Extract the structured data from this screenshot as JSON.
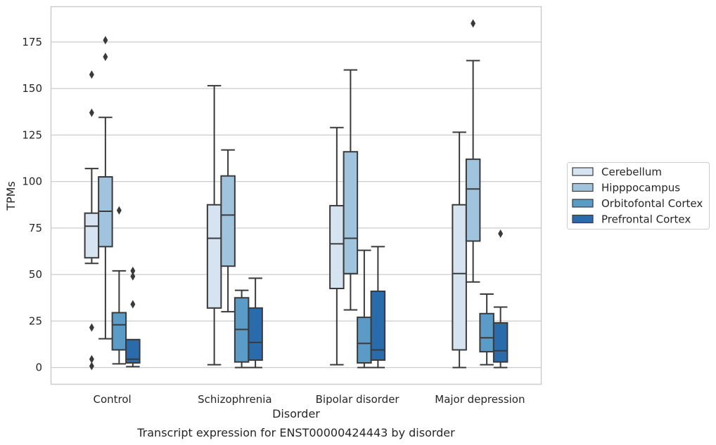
{
  "chart_data": {
    "type": "box",
    "title": "",
    "caption": "Transcript expression for ENST00000424443 by disorder",
    "xlabel": "Disorder",
    "ylabel": "TPMs",
    "ylim": [
      -9,
      194
    ],
    "yticks": [
      0,
      25,
      50,
      75,
      100,
      125,
      150,
      175
    ],
    "grid": "horizontal",
    "legend_position": "right",
    "categories": [
      "Control",
      "Schizophrenia",
      "Bipolar disorder",
      "Major depression"
    ],
    "series": [
      {
        "name": "Cerebellum",
        "color": "#d6e4f1",
        "boxes": [
          {
            "whisker_low": 56,
            "q1": 59,
            "median": 76,
            "q3": 83,
            "whisker_high": 107,
            "outliers": [
              157.5,
              137,
              21.5,
              4.5,
              0.8
            ]
          },
          {
            "whisker_low": 1.5,
            "q1": 32,
            "median": 69.5,
            "q3": 87.5,
            "whisker_high": 151.5,
            "outliers": []
          },
          {
            "whisker_low": 1.5,
            "q1": 42.5,
            "median": 66.5,
            "q3": 87,
            "whisker_high": 129,
            "outliers": []
          },
          {
            "whisker_low": 0,
            "q1": 9.5,
            "median": 50.5,
            "q3": 87.5,
            "whisker_high": 126.5,
            "outliers": []
          }
        ]
      },
      {
        "name": "Hipppocampus",
        "color": "#a0c4dd",
        "boxes": [
          {
            "whisker_low": 15.5,
            "q1": 65,
            "median": 84,
            "q3": 102.5,
            "whisker_high": 134.5,
            "outliers": [
              176,
              167
            ]
          },
          {
            "whisker_low": 30,
            "q1": 54.5,
            "median": 82,
            "q3": 103,
            "whisker_high": 117,
            "outliers": []
          },
          {
            "whisker_low": 31,
            "q1": 50.5,
            "median": 69.5,
            "q3": 116,
            "whisker_high": 160,
            "outliers": []
          },
          {
            "whisker_low": 46,
            "q1": 68,
            "median": 96,
            "q3": 112,
            "whisker_high": 165,
            "outliers": [
              185
            ]
          }
        ]
      },
      {
        "name": "Orbitofontal Cortex",
        "color": "#5b9bc8",
        "boxes": [
          {
            "whisker_low": 2,
            "q1": 9.5,
            "median": 23,
            "q3": 29.5,
            "whisker_high": 52,
            "outliers": [
              84.5
            ]
          },
          {
            "whisker_low": 0,
            "q1": 3,
            "median": 20.5,
            "q3": 37.5,
            "whisker_high": 41.5,
            "outliers": []
          },
          {
            "whisker_low": 0,
            "q1": 2.5,
            "median": 13,
            "q3": 27,
            "whisker_high": 63,
            "outliers": []
          },
          {
            "whisker_low": 1.5,
            "q1": 8.5,
            "median": 16,
            "q3": 29,
            "whisker_high": 39.5,
            "outliers": []
          }
        ]
      },
      {
        "name": "Prefrontal Cortex",
        "color": "#2a6bab",
        "boxes": [
          {
            "whisker_low": 0.5,
            "q1": 2.5,
            "median": 4.5,
            "q3": 15,
            "whisker_high": 15,
            "outliers": [
              52,
              49,
              34
            ]
          },
          {
            "whisker_low": 0,
            "q1": 4,
            "median": 13.5,
            "q3": 32,
            "whisker_high": 48,
            "outliers": []
          },
          {
            "whisker_low": 0,
            "q1": 4,
            "median": 9.5,
            "q3": 41,
            "whisker_high": 65,
            "outliers": []
          },
          {
            "whisker_low": 0,
            "q1": 3,
            "median": 9,
            "q3": 24,
            "whisker_high": 32.5,
            "outliers": [
              72
            ]
          }
        ]
      }
    ]
  }
}
